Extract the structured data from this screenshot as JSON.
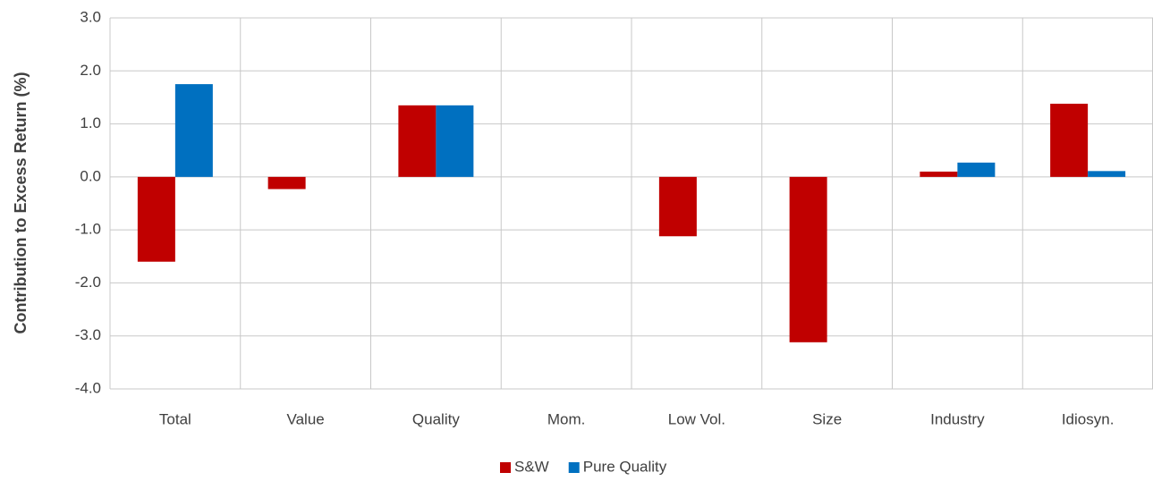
{
  "chart_data": {
    "type": "bar",
    "y_label": "Contribution to Excess Return (%)",
    "categories": [
      "Total",
      "Value",
      "Quality",
      "Mom.",
      "Low Vol.",
      "Size",
      "Industry",
      "Idiosyn."
    ],
    "series": [
      {
        "name": "S&W",
        "color": "#c00000",
        "values": [
          -1.6,
          -0.23,
          1.35,
          null,
          -1.12,
          -3.12,
          0.1,
          1.38
        ]
      },
      {
        "name": "Pure Quality",
        "color": "#0070c0",
        "values": [
          1.75,
          null,
          1.35,
          null,
          null,
          null,
          0.27,
          0.11
        ]
      }
    ],
    "ylim": [
      -4,
      3
    ],
    "yticks": [
      {
        "value": -4,
        "label": "-4.0"
      },
      {
        "value": -3,
        "label": "-3.0"
      },
      {
        "value": -2,
        "label": "-2.0"
      },
      {
        "value": -1,
        "label": "-1.0"
      },
      {
        "value": 0,
        "label": "0.0"
      },
      {
        "value": 1,
        "label": "1.0"
      },
      {
        "value": 2,
        "label": "2.0"
      },
      {
        "value": 3,
        "label": "3.0"
      }
    ],
    "grid": true,
    "legend": "bottom"
  }
}
